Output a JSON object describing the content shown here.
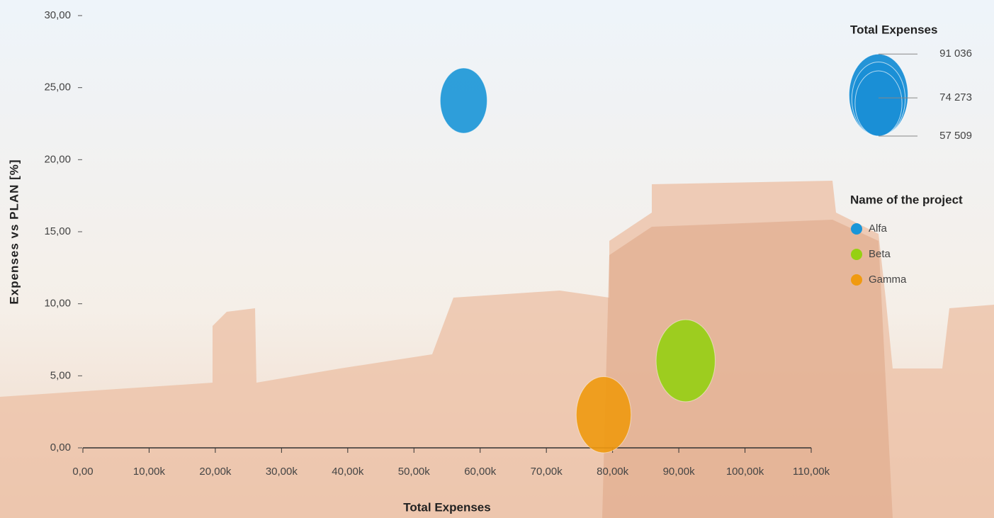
{
  "chart_data": {
    "type": "bubble",
    "x_label": "Total Expenses",
    "y_label": "Expenses vs PLAN [%]",
    "xlim": [
      0,
      110000
    ],
    "ylim": [
      0,
      30
    ],
    "xticks": [
      {
        "value": 0,
        "label": "0,00"
      },
      {
        "value": 10000,
        "label": "10,00k"
      },
      {
        "value": 20000,
        "label": "20,00k"
      },
      {
        "value": 30000,
        "label": "30,00k"
      },
      {
        "value": 40000,
        "label": "40,00k"
      },
      {
        "value": 50000,
        "label": "50,00k"
      },
      {
        "value": 60000,
        "label": "60,00k"
      },
      {
        "value": 70000,
        "label": "70,00k"
      },
      {
        "value": 80000,
        "label": "80,00k"
      },
      {
        "value": 90000,
        "label": "90,00k"
      },
      {
        "value": 100000,
        "label": "100,00k"
      },
      {
        "value": 110000,
        "label": "110,00k"
      }
    ],
    "yticks": [
      {
        "value": 0,
        "label": "0,00"
      },
      {
        "value": 5,
        "label": "5,00"
      },
      {
        "value": 10,
        "label": "10,00"
      },
      {
        "value": 15,
        "label": "15,00"
      },
      {
        "value": 20,
        "label": "20,00"
      },
      {
        "value": 25,
        "label": "25,00"
      },
      {
        "value": 30,
        "label": "30,00"
      }
    ],
    "legend_title": "Name of the project",
    "size_legend": {
      "title": "Total Expenses",
      "values": [
        {
          "value": 91036,
          "label": "91 036"
        },
        {
          "value": 74273,
          "label": "74 273"
        },
        {
          "value": 57509,
          "label": "57 509"
        }
      ]
    },
    "series": [
      {
        "name": "Alfa",
        "color": "#1a96d8",
        "x": [
          57509
        ],
        "values": [
          24.1
        ],
        "sizes": [
          57509
        ]
      },
      {
        "name": "Beta",
        "color": "#96d012",
        "x": [
          91036
        ],
        "values": [
          6.05
        ],
        "sizes": [
          91036
        ]
      },
      {
        "name": "Gamma",
        "color": "#f09a10",
        "x": [
          78650
        ],
        "values": [
          2.3
        ],
        "sizes": [
          78650
        ]
      }
    ]
  }
}
